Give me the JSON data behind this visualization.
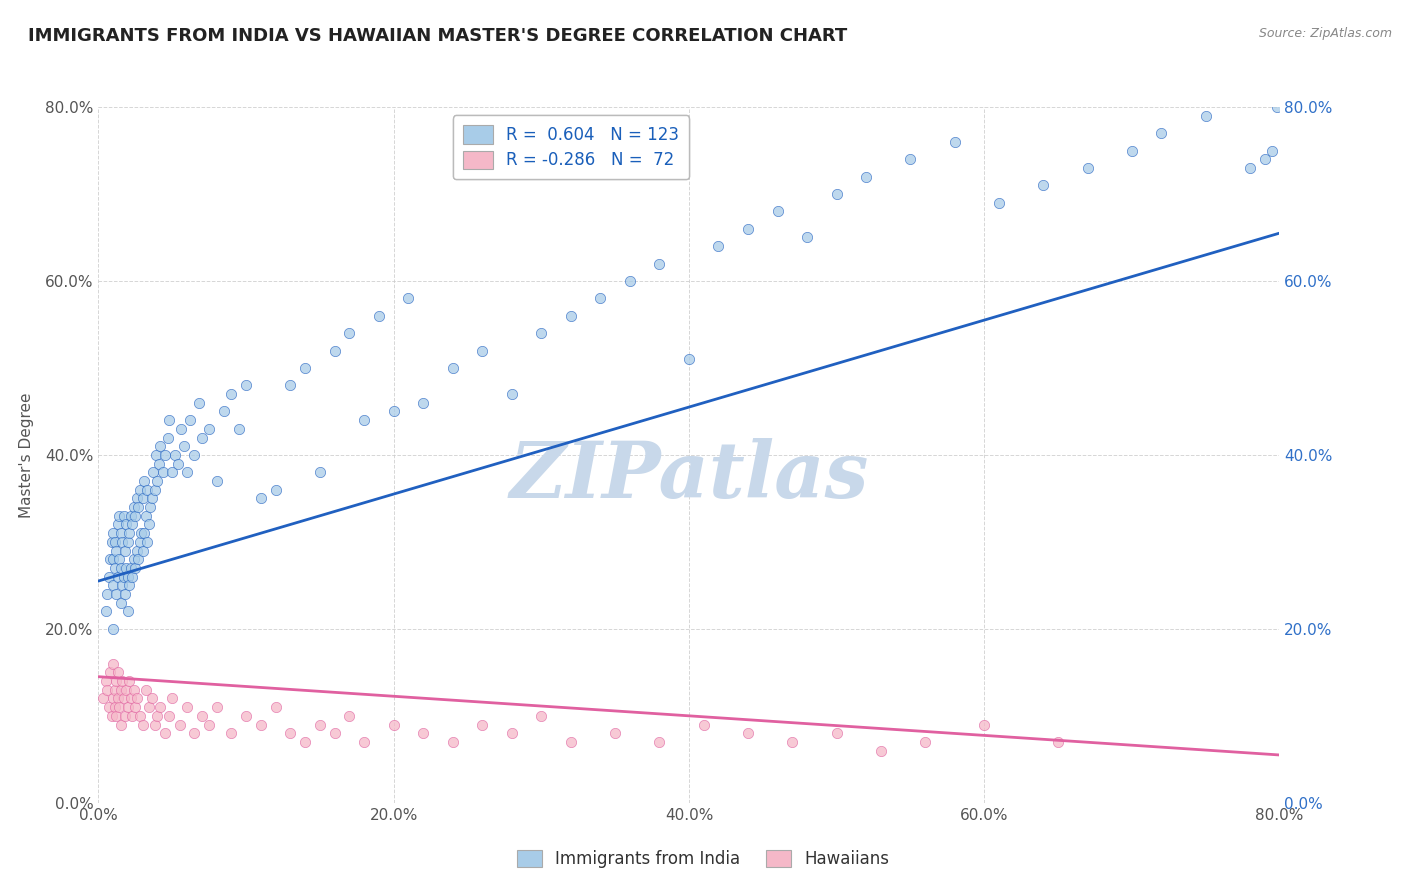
{
  "title": "IMMIGRANTS FROM INDIA VS HAWAIIAN MASTER'S DEGREE CORRELATION CHART",
  "source": "Source: ZipAtlas.com",
  "ylabel": "Master's Degree",
  "legend_labels": [
    "Immigrants from India",
    "Hawaiians"
  ],
  "r_india": 0.604,
  "n_india": 123,
  "r_hawaii": -0.286,
  "n_hawaii": 72,
  "x_min": 0.0,
  "x_max": 0.8,
  "y_min": 0.0,
  "y_max": 0.8,
  "color_india": "#a8cce8",
  "color_hawaii": "#f5b8c8",
  "color_india_line": "#2060c0",
  "color_hawaii_line": "#e060a0",
  "watermark": "ZIPatlas",
  "watermark_color": "#c8d8ea",
  "background_color": "#ffffff",
  "grid_color": "#cccccc",
  "title_fontsize": 13,
  "axis_tick_fontsize": 11,
  "ylabel_fontsize": 11,
  "legend_fontsize": 12,
  "india_line_start_y": 0.255,
  "india_line_end_y": 0.655,
  "hawaii_line_start_y": 0.145,
  "hawaii_line_end_y": 0.055,
  "india_scatter_x": [
    0.005,
    0.006,
    0.007,
    0.008,
    0.009,
    0.01,
    0.01,
    0.01,
    0.01,
    0.011,
    0.011,
    0.012,
    0.012,
    0.013,
    0.013,
    0.014,
    0.014,
    0.015,
    0.015,
    0.015,
    0.016,
    0.016,
    0.017,
    0.017,
    0.018,
    0.018,
    0.019,
    0.019,
    0.02,
    0.02,
    0.02,
    0.021,
    0.021,
    0.022,
    0.022,
    0.023,
    0.023,
    0.024,
    0.024,
    0.025,
    0.025,
    0.026,
    0.026,
    0.027,
    0.027,
    0.028,
    0.028,
    0.029,
    0.03,
    0.03,
    0.031,
    0.031,
    0.032,
    0.033,
    0.033,
    0.034,
    0.035,
    0.036,
    0.037,
    0.038,
    0.039,
    0.04,
    0.041,
    0.042,
    0.044,
    0.045,
    0.047,
    0.048,
    0.05,
    0.052,
    0.054,
    0.056,
    0.058,
    0.06,
    0.062,
    0.065,
    0.068,
    0.07,
    0.075,
    0.08,
    0.085,
    0.09,
    0.095,
    0.1,
    0.11,
    0.12,
    0.13,
    0.14,
    0.15,
    0.16,
    0.17,
    0.18,
    0.19,
    0.2,
    0.21,
    0.22,
    0.24,
    0.26,
    0.28,
    0.3,
    0.32,
    0.34,
    0.36,
    0.38,
    0.4,
    0.42,
    0.44,
    0.46,
    0.48,
    0.5,
    0.52,
    0.55,
    0.58,
    0.61,
    0.64,
    0.67,
    0.7,
    0.72,
    0.75,
    0.78,
    0.79,
    0.795,
    0.798
  ],
  "india_scatter_y": [
    0.22,
    0.24,
    0.26,
    0.28,
    0.3,
    0.2,
    0.25,
    0.28,
    0.31,
    0.27,
    0.3,
    0.24,
    0.29,
    0.26,
    0.32,
    0.28,
    0.33,
    0.23,
    0.27,
    0.31,
    0.25,
    0.3,
    0.26,
    0.33,
    0.24,
    0.29,
    0.27,
    0.32,
    0.22,
    0.26,
    0.3,
    0.25,
    0.31,
    0.27,
    0.33,
    0.26,
    0.32,
    0.28,
    0.34,
    0.27,
    0.33,
    0.29,
    0.35,
    0.28,
    0.34,
    0.3,
    0.36,
    0.31,
    0.29,
    0.35,
    0.31,
    0.37,
    0.33,
    0.3,
    0.36,
    0.32,
    0.34,
    0.35,
    0.38,
    0.36,
    0.4,
    0.37,
    0.39,
    0.41,
    0.38,
    0.4,
    0.42,
    0.44,
    0.38,
    0.4,
    0.39,
    0.43,
    0.41,
    0.38,
    0.44,
    0.4,
    0.46,
    0.42,
    0.43,
    0.37,
    0.45,
    0.47,
    0.43,
    0.48,
    0.35,
    0.36,
    0.48,
    0.5,
    0.38,
    0.52,
    0.54,
    0.44,
    0.56,
    0.45,
    0.58,
    0.46,
    0.5,
    0.52,
    0.47,
    0.54,
    0.56,
    0.58,
    0.6,
    0.62,
    0.51,
    0.64,
    0.66,
    0.68,
    0.65,
    0.7,
    0.72,
    0.74,
    0.76,
    0.69,
    0.71,
    0.73,
    0.75,
    0.77,
    0.79,
    0.73,
    0.74,
    0.75,
    0.8
  ],
  "hawaii_scatter_x": [
    0.003,
    0.005,
    0.006,
    0.007,
    0.008,
    0.009,
    0.01,
    0.01,
    0.011,
    0.011,
    0.012,
    0.012,
    0.013,
    0.013,
    0.014,
    0.015,
    0.015,
    0.016,
    0.017,
    0.018,
    0.019,
    0.02,
    0.021,
    0.022,
    0.023,
    0.024,
    0.025,
    0.026,
    0.028,
    0.03,
    0.032,
    0.034,
    0.036,
    0.038,
    0.04,
    0.042,
    0.045,
    0.048,
    0.05,
    0.055,
    0.06,
    0.065,
    0.07,
    0.075,
    0.08,
    0.09,
    0.1,
    0.11,
    0.12,
    0.13,
    0.14,
    0.15,
    0.16,
    0.17,
    0.18,
    0.2,
    0.22,
    0.24,
    0.26,
    0.28,
    0.3,
    0.32,
    0.35,
    0.38,
    0.41,
    0.44,
    0.47,
    0.5,
    0.53,
    0.56,
    0.6,
    0.65
  ],
  "hawaii_scatter_y": [
    0.12,
    0.14,
    0.13,
    0.11,
    0.15,
    0.1,
    0.12,
    0.16,
    0.13,
    0.11,
    0.14,
    0.1,
    0.12,
    0.15,
    0.11,
    0.13,
    0.09,
    0.14,
    0.12,
    0.1,
    0.13,
    0.11,
    0.14,
    0.12,
    0.1,
    0.13,
    0.11,
    0.12,
    0.1,
    0.09,
    0.13,
    0.11,
    0.12,
    0.09,
    0.1,
    0.11,
    0.08,
    0.1,
    0.12,
    0.09,
    0.11,
    0.08,
    0.1,
    0.09,
    0.11,
    0.08,
    0.1,
    0.09,
    0.11,
    0.08,
    0.07,
    0.09,
    0.08,
    0.1,
    0.07,
    0.09,
    0.08,
    0.07,
    0.09,
    0.08,
    0.1,
    0.07,
    0.08,
    0.07,
    0.09,
    0.08,
    0.07,
    0.08,
    0.06,
    0.07,
    0.09,
    0.07
  ]
}
